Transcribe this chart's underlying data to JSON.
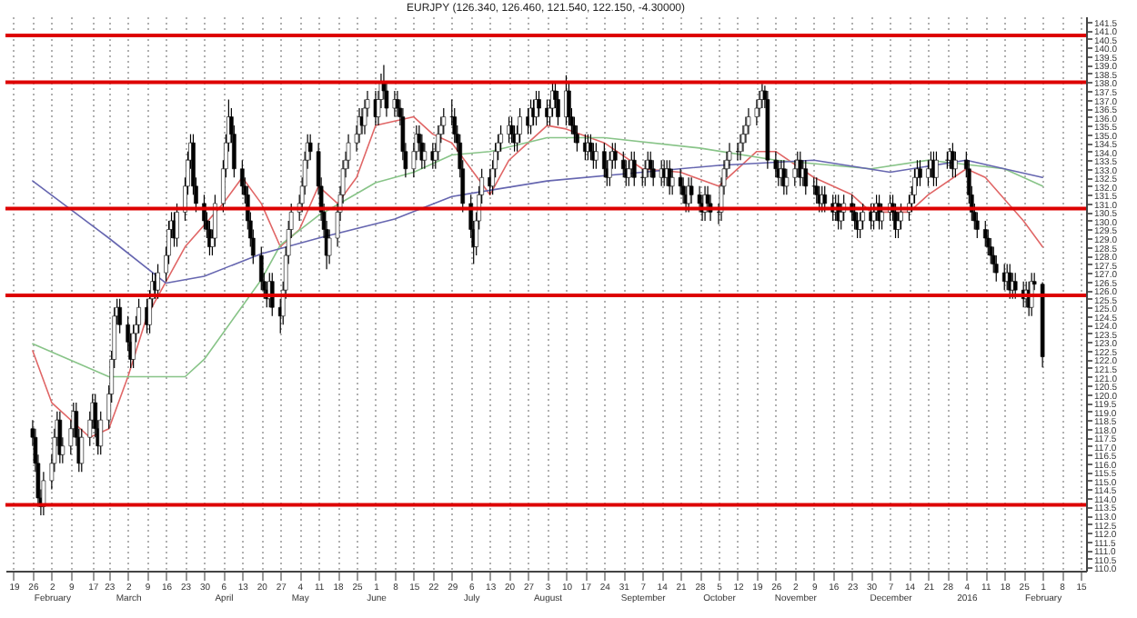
{
  "chart_data": {
    "type": "candlestick",
    "title": "EURJPY (126.340, 126.460, 121.540, 122.150, -4.30000)",
    "color": "#000000",
    "grid": "x",
    "xlim": [
      "2015-01-16",
      "2016-02-17"
    ],
    "ylim": [
      109.8,
      141.8
    ],
    "xticks": [
      {
        "value": "2015-01-19",
        "label": "19"
      },
      {
        "value": "2015-01-26",
        "label": "26"
      },
      {
        "value": "2015-02-02",
        "label": "2\nFebruary"
      },
      {
        "value": "2015-02-09",
        "label": "9"
      },
      {
        "value": "2015-02-17",
        "label": "17"
      },
      {
        "value": "2015-02-23",
        "label": "23"
      },
      {
        "value": "2015-03-02",
        "label": "2\nMarch"
      },
      {
        "value": "2015-03-09",
        "label": "9"
      },
      {
        "value": "2015-03-16",
        "label": "16"
      },
      {
        "value": "2015-03-23",
        "label": "23"
      },
      {
        "value": "2015-03-30",
        "label": "30"
      },
      {
        "value": "2015-04-06",
        "label": "6\nApril"
      },
      {
        "value": "2015-04-13",
        "label": "13"
      },
      {
        "value": "2015-04-20",
        "label": "20"
      },
      {
        "value": "2015-04-27",
        "label": "27"
      },
      {
        "value": "2015-05-04",
        "label": "4\nMay"
      },
      {
        "value": "2015-05-11",
        "label": "11"
      },
      {
        "value": "2015-05-18",
        "label": "18"
      },
      {
        "value": "2015-05-25",
        "label": "25"
      },
      {
        "value": "2015-06-01",
        "label": "1\nJune"
      },
      {
        "value": "2015-06-08",
        "label": "8"
      },
      {
        "value": "2015-06-15",
        "label": "15"
      },
      {
        "value": "2015-06-22",
        "label": "22"
      },
      {
        "value": "2015-06-29",
        "label": "29"
      },
      {
        "value": "2015-07-06",
        "label": "6\nJuly"
      },
      {
        "value": "2015-07-13",
        "label": "13"
      },
      {
        "value": "2015-07-20",
        "label": "20"
      },
      {
        "value": "2015-07-27",
        "label": "27"
      },
      {
        "value": "2015-08-03",
        "label": "3\nAugust"
      },
      {
        "value": "2015-08-10",
        "label": "10"
      },
      {
        "value": "2015-08-17",
        "label": "17"
      },
      {
        "value": "2015-08-24",
        "label": "24"
      },
      {
        "value": "2015-08-31",
        "label": "31"
      },
      {
        "value": "2015-09-07",
        "label": "7\nSeptember"
      },
      {
        "value": "2015-09-14",
        "label": "14"
      },
      {
        "value": "2015-09-21",
        "label": "21"
      },
      {
        "value": "2015-09-28",
        "label": "28"
      },
      {
        "value": "2015-10-05",
        "label": "5\nOctober"
      },
      {
        "value": "2015-10-12",
        "label": "12"
      },
      {
        "value": "2015-10-19",
        "label": "19"
      },
      {
        "value": "2015-10-26",
        "label": "26"
      },
      {
        "value": "2015-11-02",
        "label": "2\nNovember"
      },
      {
        "value": "2015-11-09",
        "label": "9"
      },
      {
        "value": "2015-11-16",
        "label": "16"
      },
      {
        "value": "2015-11-23",
        "label": "23"
      },
      {
        "value": "2015-11-30",
        "label": "30"
      },
      {
        "value": "2015-12-07",
        "label": "7\nDecember"
      },
      {
        "value": "2015-12-14",
        "label": "14"
      },
      {
        "value": "2015-12-21",
        "label": "21"
      },
      {
        "value": "2015-12-28",
        "label": "28"
      },
      {
        "value": "2016-01-04",
        "label": "4\n2016"
      },
      {
        "value": "2016-01-11",
        "label": "11"
      },
      {
        "value": "2016-01-18",
        "label": "18"
      },
      {
        "value": "2016-01-25",
        "label": "25"
      },
      {
        "value": "2016-02-01",
        "label": "1\nFebruary"
      },
      {
        "value": "2016-02-08",
        "label": "8"
      },
      {
        "value": "2016-02-15",
        "label": "15"
      }
    ],
    "yticks": [
      {
        "value": 110,
        "label": "110.0"
      },
      110.5,
      {
        "value": 111,
        "label": "111.0"
      },
      111.5,
      {
        "value": 112,
        "label": "112.0"
      },
      112.5,
      {
        "value": 113,
        "label": "113.0"
      },
      113.5,
      {
        "value": 114,
        "label": "114.0"
      },
      114.5,
      {
        "value": 115,
        "label": "115.0"
      },
      115.5,
      {
        "value": 116,
        "label": "116.0"
      },
      116.5,
      {
        "value": 117,
        "label": "117.0"
      },
      117.5,
      {
        "value": 118,
        "label": "118.0"
      },
      118.5,
      {
        "value": 119,
        "label": "119.0"
      },
      119.5,
      {
        "value": 120,
        "label": "120.0"
      },
      120.5,
      {
        "value": 121,
        "label": "121.0"
      },
      121.5,
      {
        "value": 122,
        "label": "122.0"
      },
      122.5,
      {
        "value": 123,
        "label": "123.0"
      },
      123.5,
      {
        "value": 124,
        "label": "124.0"
      },
      124.5,
      {
        "value": 125,
        "label": "125.0"
      },
      125.5,
      {
        "value": 126,
        "label": "126.0"
      },
      126.5,
      {
        "value": 127,
        "label": "127.0"
      },
      127.5,
      {
        "value": 128,
        "label": "128.0"
      },
      128.5,
      {
        "value": 129,
        "label": "129.0"
      },
      129.5,
      {
        "value": 130,
        "label": "130.0"
      },
      130.5,
      {
        "value": 131,
        "label": "131.0"
      },
      131.5,
      {
        "value": 132,
        "label": "132.0"
      },
      132.5,
      {
        "value": 133,
        "label": "133.0"
      },
      133.5,
      {
        "value": 134,
        "label": "134.0"
      },
      134.5,
      {
        "value": 135,
        "label": "135.0"
      },
      135.5,
      {
        "value": 136,
        "label": "136.0"
      },
      136.5,
      {
        "value": 137,
        "label": "137.0"
      },
      137.5,
      {
        "value": 138,
        "label": "138.0"
      },
      138.5,
      {
        "value": 139,
        "label": "139.0"
      },
      139.5,
      {
        "value": 140,
        "label": "140.0"
      },
      140.5,
      {
        "value": 141,
        "label": "141.0"
      },
      141.5
    ],
    "ref_lines": [
      {
        "axis": "y",
        "value": 140.7,
        "color": "#dd0000"
      },
      {
        "axis": "y",
        "value": 138.0,
        "color": "#dd0000"
      },
      {
        "axis": "y",
        "value": 130.7,
        "color": "#dd0000"
      },
      {
        "axis": "y",
        "value": 125.7,
        "color": "#dd0000"
      },
      {
        "axis": "y",
        "value": 113.6,
        "color": "#dd0000"
      }
    ],
    "x": [
      "2015-01-26",
      "2015-01-27",
      "2015-01-28",
      "2015-01-29",
      "2015-01-30",
      "2015-02-02",
      "2015-02-03",
      "2015-02-04",
      "2015-02-05",
      "2015-02-06",
      "2015-02-09",
      "2015-02-10",
      "2015-02-11",
      "2015-02-12",
      "2015-02-13",
      "2015-02-16",
      "2015-02-17",
      "2015-02-18",
      "2015-02-19",
      "2015-02-20",
      "2015-02-23",
      "2015-02-24",
      "2015-02-25",
      "2015-02-26",
      "2015-02-27",
      "2015-03-02",
      "2015-03-03",
      "2015-03-04",
      "2015-03-05",
      "2015-03-06",
      "2015-03-09",
      "2015-03-10",
      "2015-03-11",
      "2015-03-12",
      "2015-03-13",
      "2015-03-16",
      "2015-03-17",
      "2015-03-18",
      "2015-03-19",
      "2015-03-20",
      "2015-03-23",
      "2015-03-24",
      "2015-03-25",
      "2015-03-26",
      "2015-03-27",
      "2015-03-30",
      "2015-03-31",
      "2015-04-01",
      "2015-04-02",
      "2015-04-03",
      "2015-04-06",
      "2015-04-07",
      "2015-04-08",
      "2015-04-09",
      "2015-04-10",
      "2015-04-13",
      "2015-04-14",
      "2015-04-15",
      "2015-04-16",
      "2015-04-17",
      "2015-04-20",
      "2015-04-21",
      "2015-04-22",
      "2015-04-23",
      "2015-04-24",
      "2015-04-27",
      "2015-04-28",
      "2015-04-29",
      "2015-04-30",
      "2015-05-01",
      "2015-05-04",
      "2015-05-05",
      "2015-05-06",
      "2015-05-07",
      "2015-05-08",
      "2015-05-11",
      "2015-05-12",
      "2015-05-13",
      "2015-05-14",
      "2015-05-15",
      "2015-05-18",
      "2015-05-19",
      "2015-05-20",
      "2015-05-21",
      "2015-05-22",
      "2015-05-25",
      "2015-05-26",
      "2015-05-27",
      "2015-05-28",
      "2015-05-29",
      "2015-06-01",
      "2015-06-02",
      "2015-06-03",
      "2015-06-04",
      "2015-06-05",
      "2015-06-08",
      "2015-06-09",
      "2015-06-10",
      "2015-06-11",
      "2015-06-12",
      "2015-06-15",
      "2015-06-16",
      "2015-06-17",
      "2015-06-18",
      "2015-06-19",
      "2015-06-22",
      "2015-06-23",
      "2015-06-24",
      "2015-06-25",
      "2015-06-26",
      "2015-06-29",
      "2015-06-30",
      "2015-07-01",
      "2015-07-02",
      "2015-07-03",
      "2015-07-06",
      "2015-07-07",
      "2015-07-08",
      "2015-07-09",
      "2015-07-10",
      "2015-07-13",
      "2015-07-14",
      "2015-07-15",
      "2015-07-16",
      "2015-07-17",
      "2015-07-20",
      "2015-07-21",
      "2015-07-22",
      "2015-07-23",
      "2015-07-24",
      "2015-07-27",
      "2015-07-28",
      "2015-07-29",
      "2015-07-30",
      "2015-07-31",
      "2015-08-03",
      "2015-08-04",
      "2015-08-05",
      "2015-08-06",
      "2015-08-07",
      "2015-08-10",
      "2015-08-11",
      "2015-08-12",
      "2015-08-13",
      "2015-08-14",
      "2015-08-17",
      "2015-08-18",
      "2015-08-19",
      "2015-08-20",
      "2015-08-21",
      "2015-08-24",
      "2015-08-25",
      "2015-08-26",
      "2015-08-27",
      "2015-08-28",
      "2015-08-31",
      "2015-09-01",
      "2015-09-02",
      "2015-09-03",
      "2015-09-04",
      "2015-09-07",
      "2015-09-08",
      "2015-09-09",
      "2015-09-10",
      "2015-09-11",
      "2015-09-14",
      "2015-09-15",
      "2015-09-16",
      "2015-09-17",
      "2015-09-18",
      "2015-09-21",
      "2015-09-22",
      "2015-09-23",
      "2015-09-24",
      "2015-09-25",
      "2015-09-28",
      "2015-09-29",
      "2015-09-30",
      "2015-10-01",
      "2015-10-02",
      "2015-10-05",
      "2015-10-06",
      "2015-10-07",
      "2015-10-08",
      "2015-10-09",
      "2015-10-12",
      "2015-10-13",
      "2015-10-14",
      "2015-10-15",
      "2015-10-16",
      "2015-10-19",
      "2015-10-20",
      "2015-10-21",
      "2015-10-22",
      "2015-10-23",
      "2015-10-26",
      "2015-10-27",
      "2015-10-28",
      "2015-10-29",
      "2015-10-30",
      "2015-11-02",
      "2015-11-03",
      "2015-11-04",
      "2015-11-05",
      "2015-11-06",
      "2015-11-09",
      "2015-11-10",
      "2015-11-11",
      "2015-11-12",
      "2015-11-13",
      "2015-11-16",
      "2015-11-17",
      "2015-11-18",
      "2015-11-19",
      "2015-11-20",
      "2015-11-23",
      "2015-11-24",
      "2015-11-25",
      "2015-11-26",
      "2015-11-27",
      "2015-11-30",
      "2015-12-01",
      "2015-12-02",
      "2015-12-03",
      "2015-12-04",
      "2015-12-07",
      "2015-12-08",
      "2015-12-09",
      "2015-12-10",
      "2015-12-11",
      "2015-12-14",
      "2015-12-15",
      "2015-12-16",
      "2015-12-17",
      "2015-12-18",
      "2015-12-21",
      "2015-12-22",
      "2015-12-23",
      "2015-12-24",
      "2015-12-28",
      "2015-12-29",
      "2015-12-30",
      "2015-12-31",
      "2016-01-04",
      "2016-01-05",
      "2016-01-06",
      "2016-01-07",
      "2016-01-08",
      "2016-01-11",
      "2016-01-12",
      "2016-01-13",
      "2016-01-14",
      "2016-01-15",
      "2016-01-18",
      "2016-01-19",
      "2016-01-20",
      "2016-01-21",
      "2016-01-22",
      "2016-01-25",
      "2016-01-26",
      "2016-01-27",
      "2016-01-28",
      "2016-01-29",
      "2016-02-01"
    ],
    "ohlc": [
      [
        118,
        118.5,
        117,
        117.5
      ],
      [
        117.5,
        118,
        115.5,
        116
      ],
      [
        116,
        116.5,
        113.5,
        114
      ],
      [
        114,
        114.5,
        113,
        113.5
      ],
      [
        113.5,
        115.5,
        113,
        115
      ],
      [
        115,
        116.5,
        114.5,
        116
      ],
      [
        116,
        118,
        115.5,
        117.5
      ],
      [
        117.5,
        119,
        117,
        118.5
      ],
      [
        118.5,
        119,
        116,
        116.5
      ],
      [
        116.5,
        117.5,
        116,
        117
      ],
      [
        117,
        118.5,
        116.5,
        118
      ],
      [
        118,
        119.5,
        117.5,
        119
      ],
      [
        119,
        119.5,
        117,
        117.5
      ],
      [
        117.5,
        118,
        115.5,
        116
      ],
      [
        116,
        118,
        115.5,
        117.5
      ],
      [
        117.5,
        119,
        117,
        118.5
      ],
      [
        118.5,
        120,
        118,
        119.5
      ],
      [
        119.5,
        120,
        117.5,
        118
      ],
      [
        118,
        118.5,
        116.5,
        117
      ],
      [
        117,
        119,
        116.5,
        118.5
      ],
      [
        118.5,
        120.5,
        118,
        120
      ],
      [
        120,
        122.5,
        119.5,
        122
      ],
      [
        122,
        125,
        121.5,
        124.5
      ],
      [
        124.5,
        125.5,
        124,
        125
      ],
      [
        125,
        125.5,
        123.5,
        124
      ],
      [
        124,
        124.5,
        122.5,
        123
      ],
      [
        123,
        123.5,
        121.5,
        122
      ],
      [
        122,
        124,
        121.5,
        123.5
      ],
      [
        123.5,
        124.5,
        123,
        124
      ],
      [
        124,
        125.5,
        123.5,
        125
      ],
      [
        125,
        125.5,
        123.5,
        124
      ],
      [
        124,
        126,
        123.5,
        125.5
      ],
      [
        125.5,
        127,
        125,
        126.5
      ],
      [
        126.5,
        127,
        125.5,
        126
      ],
      [
        126,
        127.5,
        125.5,
        127
      ],
      [
        127,
        128.5,
        126.5,
        128
      ],
      [
        128,
        130,
        127.5,
        129.5
      ],
      [
        129.5,
        130.5,
        129,
        130
      ],
      [
        130,
        130.5,
        128.5,
        129
      ],
      [
        129,
        131,
        128.5,
        130.5
      ],
      [
        130.5,
        132.5,
        130,
        132
      ],
      [
        132,
        134,
        131.5,
        133.5
      ],
      [
        133.5,
        135,
        133,
        134.5
      ],
      [
        134.5,
        135,
        131.5,
        132
      ],
      [
        132,
        132.5,
        130.5,
        131
      ],
      [
        131,
        131.5,
        129.5,
        130
      ],
      [
        130,
        130.5,
        129,
        129.5
      ],
      [
        129.5,
        130,
        128,
        128.5
      ],
      [
        128.5,
        129.5,
        128,
        129
      ],
      [
        129,
        131.5,
        128.5,
        131
      ],
      [
        131,
        133.5,
        130.5,
        133
      ],
      [
        133,
        135,
        132.5,
        134.5
      ],
      [
        134.5,
        137,
        134,
        136
      ],
      [
        136,
        136.5,
        134.5,
        135
      ],
      [
        135,
        135.5,
        132.5,
        133
      ],
      [
        133,
        133.5,
        131.5,
        132
      ],
      [
        132,
        132.5,
        131,
        131.5
      ],
      [
        131.5,
        132,
        129.5,
        130
      ],
      [
        130,
        130.5,
        128.5,
        129
      ],
      [
        129,
        129.5,
        127.5,
        128
      ],
      [
        128,
        128.5,
        126,
        126.5
      ],
      [
        126.5,
        127,
        125.5,
        126
      ],
      [
        126,
        126.5,
        125,
        125.5
      ],
      [
        125.5,
        127,
        125,
        126.5
      ],
      [
        126.5,
        127,
        124.5,
        125
      ],
      [
        125,
        125.5,
        123.5,
        124.5
      ],
      [
        124.5,
        126.5,
        124,
        126
      ],
      [
        126,
        128.5,
        125.5,
        128
      ],
      [
        128,
        130,
        127.5,
        129.5
      ],
      [
        129.5,
        131,
        129,
        130.5
      ],
      [
        130.5,
        131.5,
        130,
        131
      ],
      [
        131,
        132.5,
        130.5,
        132
      ],
      [
        132,
        134,
        131.5,
        133.5
      ],
      [
        133.5,
        135,
        133,
        134.5
      ],
      [
        134.5,
        135,
        133.5,
        134
      ],
      [
        134,
        134.5,
        131.5,
        132
      ],
      [
        132,
        132.5,
        130,
        130.5
      ],
      [
        130.5,
        131,
        129,
        129.5
      ],
      [
        129.5,
        130,
        127.2,
        128
      ],
      [
        128,
        129.5,
        127.5,
        129
      ],
      [
        129,
        131,
        128.5,
        130.5
      ],
      [
        130.5,
        132,
        130,
        131.5
      ],
      [
        131.5,
        133.5,
        131,
        133
      ],
      [
        133,
        134,
        132.5,
        133.5
      ],
      [
        133.5,
        135,
        133,
        134.5
      ],
      [
        134.5,
        135.5,
        134,
        135
      ],
      [
        135,
        136.5,
        134.5,
        136
      ],
      [
        136,
        136.5,
        135,
        135.5
      ],
      [
        135.5,
        137,
        135,
        136.5
      ],
      [
        136.5,
        137.5,
        136,
        137
      ],
      [
        137,
        137.5,
        135.5,
        136
      ],
      [
        136,
        137.5,
        135.5,
        137
      ],
      [
        137,
        138.5,
        136.5,
        138
      ],
      [
        138,
        139,
        137,
        137.5
      ],
      [
        137.5,
        138,
        136,
        136.5
      ],
      [
        136.5,
        137.5,
        136,
        137
      ],
      [
        137,
        137.5,
        136,
        136.5
      ],
      [
        136.5,
        137,
        135.5,
        136
      ],
      [
        136,
        136.5,
        133.5,
        134
      ],
      [
        134,
        134.5,
        132.5,
        133
      ],
      [
        133,
        134.5,
        132.5,
        134
      ],
      [
        134,
        135.5,
        133.5,
        135
      ],
      [
        135,
        135.5,
        134,
        134.5
      ],
      [
        134.5,
        135,
        133,
        133.5
      ],
      [
        133.5,
        134.5,
        133,
        134
      ],
      [
        134,
        134.5,
        133,
        133.5
      ],
      [
        133.5,
        134.5,
        133,
        134
      ],
      [
        134,
        135.5,
        133.5,
        135
      ],
      [
        135,
        136,
        134.5,
        135.5
      ],
      [
        135.5,
        136.5,
        135,
        136
      ],
      [
        136,
        137,
        135.5,
        136
      ],
      [
        136,
        136.5,
        134.5,
        135
      ],
      [
        135,
        135.5,
        134,
        134.5
      ],
      [
        134.5,
        135,
        132.5,
        133
      ],
      [
        133,
        133.5,
        130.5,
        131
      ],
      [
        131,
        131.5,
        129,
        129.5
      ],
      [
        129.5,
        130,
        127.5,
        128.5
      ],
      [
        128.5,
        130.5,
        128,
        130
      ],
      [
        130,
        132,
        129.5,
        131.5
      ],
      [
        131.5,
        133,
        131,
        132.5
      ],
      [
        132.5,
        133,
        131.5,
        132
      ],
      [
        132,
        133.5,
        131.5,
        133
      ],
      [
        133,
        134.5,
        132.5,
        134
      ],
      [
        134,
        135,
        133.5,
        134.5
      ],
      [
        134.5,
        135.5,
        134,
        135
      ],
      [
        135,
        136,
        134.5,
        135.5
      ],
      [
        135.5,
        136,
        134.5,
        135
      ],
      [
        135,
        135.5,
        134,
        134.5
      ],
      [
        134.5,
        135.5,
        134,
        135
      ],
      [
        135,
        136.5,
        134.5,
        136
      ],
      [
        136,
        136.5,
        135,
        135.5
      ],
      [
        135.5,
        137,
        135,
        136.5
      ],
      [
        136.5,
        137,
        135.5,
        136
      ],
      [
        136,
        137.5,
        135.5,
        137
      ],
      [
        137,
        137.5,
        136,
        136.5
      ],
      [
        136.5,
        137,
        135.5,
        136
      ],
      [
        136,
        137,
        135.5,
        136.5
      ],
      [
        136.5,
        138,
        136,
        137.5
      ],
      [
        137.5,
        138,
        136.5,
        137
      ],
      [
        137,
        137.5,
        135.5,
        136
      ],
      [
        136,
        138.4,
        135.5,
        137.5
      ],
      [
        137.5,
        138,
        135.5,
        136
      ],
      [
        136,
        136.5,
        135,
        135.5
      ],
      [
        135.5,
        136,
        134.5,
        135
      ],
      [
        135,
        135.5,
        134,
        134.5
      ],
      [
        134.5,
        135,
        133.5,
        134
      ],
      [
        134,
        135,
        133.5,
        134.5
      ],
      [
        134.5,
        135,
        133.5,
        134
      ],
      [
        134,
        134.5,
        133,
        133.5
      ],
      [
        133.5,
        134.5,
        133,
        134
      ],
      [
        134,
        134.5,
        132.5,
        133
      ],
      [
        133,
        133.5,
        132,
        132.5
      ],
      [
        132.5,
        134,
        132,
        133.5
      ],
      [
        133.5,
        134.5,
        133,
        134
      ],
      [
        134,
        134.5,
        133,
        133.5
      ],
      [
        133.5,
        134,
        132.5,
        133
      ],
      [
        133,
        133.5,
        132,
        132.5
      ],
      [
        132.5,
        133.5,
        132,
        133
      ],
      [
        133,
        134,
        132.5,
        133.5
      ],
      [
        133.5,
        134,
        132,
        132.5
      ],
      [
        132.5,
        133,
        132,
        132.5
      ],
      [
        132.5,
        133.5,
        132,
        133
      ],
      [
        133,
        134,
        132.5,
        133.5
      ],
      [
        133.5,
        134,
        132.5,
        133
      ],
      [
        133,
        133.5,
        132,
        132.5
      ],
      [
        132.5,
        133.5,
        132,
        133
      ],
      [
        133,
        133.5,
        132,
        132.5
      ],
      [
        132.5,
        133.5,
        132,
        133
      ],
      [
        133,
        133.5,
        131.5,
        132
      ],
      [
        132,
        133,
        131.5,
        132.5
      ],
      [
        132.5,
        133,
        131.5,
        132
      ],
      [
        132,
        132.5,
        131,
        131.5
      ],
      [
        131.5,
        132,
        130.5,
        131
      ],
      [
        131,
        132.5,
        130.5,
        132
      ],
      [
        132,
        132.5,
        131,
        131.5
      ],
      [
        131.5,
        132,
        130.5,
        131
      ],
      [
        131,
        131.5,
        130,
        130.5
      ],
      [
        130.5,
        132,
        130,
        131.5
      ],
      [
        131.5,
        132,
        130.5,
        131
      ],
      [
        131,
        131.5,
        130,
        130.5
      ],
      [
        130.5,
        131,
        129.8,
        130.5
      ],
      [
        130.5,
        132.5,
        130,
        132
      ],
      [
        132,
        133.5,
        131.5,
        133
      ],
      [
        133,
        134,
        132.5,
        133.5
      ],
      [
        133.5,
        134.5,
        133,
        134
      ],
      [
        134,
        134.5,
        133.5,
        134
      ],
      [
        134,
        135,
        133.5,
        134.5
      ],
      [
        134.5,
        135.5,
        134,
        135
      ],
      [
        135,
        136,
        134.5,
        135.5
      ],
      [
        135.5,
        136.5,
        135,
        136
      ],
      [
        136,
        137,
        135.5,
        136.5
      ],
      [
        136.5,
        137.5,
        136,
        137
      ],
      [
        137,
        137.9,
        136.5,
        137.5
      ],
      [
        137.5,
        137.8,
        136.5,
        137
      ],
      [
        137,
        137.5,
        133,
        133.5
      ],
      [
        133.5,
        134,
        132.5,
        133
      ],
      [
        133,
        133.5,
        132,
        132.5
      ],
      [
        132.5,
        133.5,
        132,
        133
      ],
      [
        133,
        133.5,
        131.5,
        132
      ],
      [
        132,
        133,
        131.5,
        132.5
      ],
      [
        132.5,
        133.5,
        132,
        133
      ],
      [
        133,
        134,
        132.5,
        133.5
      ],
      [
        133.5,
        134,
        132,
        132.5
      ],
      [
        132.5,
        133.5,
        132,
        133
      ],
      [
        133,
        133.5,
        131.5,
        132
      ],
      [
        132,
        132.5,
        131.5,
        132
      ],
      [
        132,
        132.5,
        131,
        131.5
      ],
      [
        131.5,
        132,
        130.5,
        131
      ],
      [
        131,
        132,
        130.5,
        131.5
      ],
      [
        131.5,
        132,
        130.5,
        131
      ],
      [
        131,
        131.5,
        130,
        130.5
      ],
      [
        130.5,
        131.5,
        130,
        131
      ],
      [
        131,
        131.5,
        129.5,
        130
      ],
      [
        130,
        131,
        129.5,
        130.5
      ],
      [
        130.5,
        131.5,
        130,
        131
      ],
      [
        131,
        131.5,
        130,
        130.5
      ],
      [
        130.5,
        131,
        129.5,
        130
      ],
      [
        130,
        130.5,
        129,
        129.5
      ],
      [
        129.5,
        130.5,
        129,
        130
      ],
      [
        130,
        131,
        129.5,
        130.5
      ],
      [
        130.5,
        131,
        129.5,
        130
      ],
      [
        130,
        131,
        129.5,
        130.5
      ],
      [
        130.5,
        131.5,
        130,
        131
      ],
      [
        131,
        131.5,
        129.5,
        130
      ],
      [
        130,
        131,
        129.5,
        130.5
      ],
      [
        130.5,
        131.5,
        130,
        131
      ],
      [
        131,
        131.5,
        130,
        130.5
      ],
      [
        130.5,
        131,
        129,
        129.5
      ],
      [
        129.5,
        130.5,
        129,
        130
      ],
      [
        130,
        131,
        129.5,
        130.5
      ],
      [
        130.5,
        131.5,
        130,
        131
      ],
      [
        131,
        132,
        130.5,
        131.5
      ],
      [
        131.5,
        133,
        131,
        132.5
      ],
      [
        132.5,
        133.5,
        132,
        133
      ],
      [
        133,
        133.5,
        132,
        132.5
      ],
      [
        132.5,
        133.5,
        132,
        133
      ],
      [
        133,
        134,
        132.5,
        133.5
      ],
      [
        133.5,
        134,
        132,
        132.5
      ],
      [
        132.5,
        134,
        132,
        133.5
      ],
      [
        133.5,
        134,
        133,
        133.5
      ],
      [
        133.5,
        134.2,
        133,
        134
      ],
      [
        134,
        134.5,
        132.5,
        133
      ],
      [
        133,
        134,
        132.5,
        133.5
      ],
      [
        133.5,
        134,
        132.5,
        133
      ],
      [
        133,
        133.5,
        131,
        131.5
      ],
      [
        131.5,
        132,
        130,
        130.5
      ],
      [
        130.5,
        131,
        129.5,
        130
      ],
      [
        130,
        130.5,
        129,
        129.5
      ],
      [
        129.5,
        130,
        128.5,
        129
      ],
      [
        129,
        129.5,
        128,
        128.5
      ],
      [
        128.5,
        129,
        127.5,
        128
      ],
      [
        128,
        128.5,
        127,
        127.5
      ],
      [
        127.5,
        128,
        126.5,
        127
      ],
      [
        127,
        127.5,
        126,
        126.5
      ],
      [
        126.5,
        127.5,
        126,
        127
      ],
      [
        127,
        127.5,
        125.5,
        126
      ],
      [
        126,
        127,
        125.5,
        126.5
      ],
      [
        126.5,
        127,
        125.5,
        126
      ],
      [
        126,
        126.5,
        125,
        125.5
      ],
      [
        125.5,
        126.5,
        125,
        126
      ],
      [
        126,
        126.5,
        124.5,
        125
      ],
      [
        125,
        127,
        124.5,
        126.5
      ],
      [
        126.5,
        127,
        126,
        126.34
      ],
      [
        126.34,
        126.46,
        121.54,
        122.15
      ]
    ],
    "series": [
      {
        "type": "line",
        "color": "#e06666",
        "x": [
          "2015-01-26",
          "2015-02-02",
          "2015-02-16",
          "2015-02-23",
          "2015-03-02",
          "2015-03-09",
          "2015-03-23",
          "2015-04-06",
          "2015-04-13",
          "2015-04-20",
          "2015-04-27",
          "2015-05-04",
          "2015-05-11",
          "2015-05-18",
          "2015-05-25",
          "2015-06-01",
          "2015-06-15",
          "2015-06-22",
          "2015-06-29",
          "2015-07-06",
          "2015-07-13",
          "2015-07-20",
          "2015-07-27",
          "2015-08-03",
          "2015-08-10",
          "2015-08-24",
          "2015-09-07",
          "2015-09-21",
          "2015-10-05",
          "2015-10-19",
          "2015-10-26",
          "2015-11-09",
          "2015-11-23",
          "2015-11-30",
          "2015-12-14",
          "2015-12-21",
          "2016-01-04",
          "2016-01-11",
          "2016-01-25",
          "2016-02-01"
        ],
        "values": [
          122.5,
          119.5,
          117.5,
          118,
          121,
          124.5,
          128.5,
          131,
          132.5,
          131,
          128.5,
          129.5,
          132,
          131,
          132.5,
          135.5,
          136,
          135,
          134.5,
          133,
          131.5,
          133.5,
          134.5,
          135.5,
          135.3,
          134.5,
          133,
          132.8,
          132,
          134,
          134,
          132.5,
          131.5,
          130.5,
          130.5,
          131.5,
          133,
          132.5,
          130,
          128.5
        ]
      },
      {
        "type": "line",
        "color": "#88c488",
        "x": [
          "2015-01-26",
          "2015-02-23",
          "2015-03-23",
          "2015-03-30",
          "2015-04-20",
          "2015-04-27",
          "2015-05-11",
          "2015-06-01",
          "2015-06-15",
          "2015-06-29",
          "2015-07-13",
          "2015-08-03",
          "2015-08-24",
          "2015-09-28",
          "2015-10-26",
          "2015-11-30",
          "2015-12-21",
          "2016-01-18",
          "2016-02-01"
        ],
        "values": [
          122.9,
          121,
          121,
          122,
          126.6,
          128.6,
          130.3,
          132.2,
          132.8,
          133.8,
          134,
          134.8,
          134.8,
          134.2,
          133.5,
          133,
          133.5,
          133,
          132
        ]
      },
      {
        "type": "line",
        "color": "#6666b0",
        "x": [
          "2015-01-26",
          "2015-02-23",
          "2015-03-16",
          "2015-03-30",
          "2015-04-20",
          "2015-05-11",
          "2015-06-08",
          "2015-06-29",
          "2015-08-03",
          "2015-09-07",
          "2015-10-05",
          "2015-11-09",
          "2015-12-07",
          "2016-01-04",
          "2016-02-01"
        ],
        "values": [
          132.3,
          129,
          126.4,
          126.8,
          128.1,
          129,
          130.1,
          131.4,
          132.3,
          132.8,
          133.2,
          133.5,
          132.8,
          133.5,
          132.5
        ]
      }
    ]
  }
}
